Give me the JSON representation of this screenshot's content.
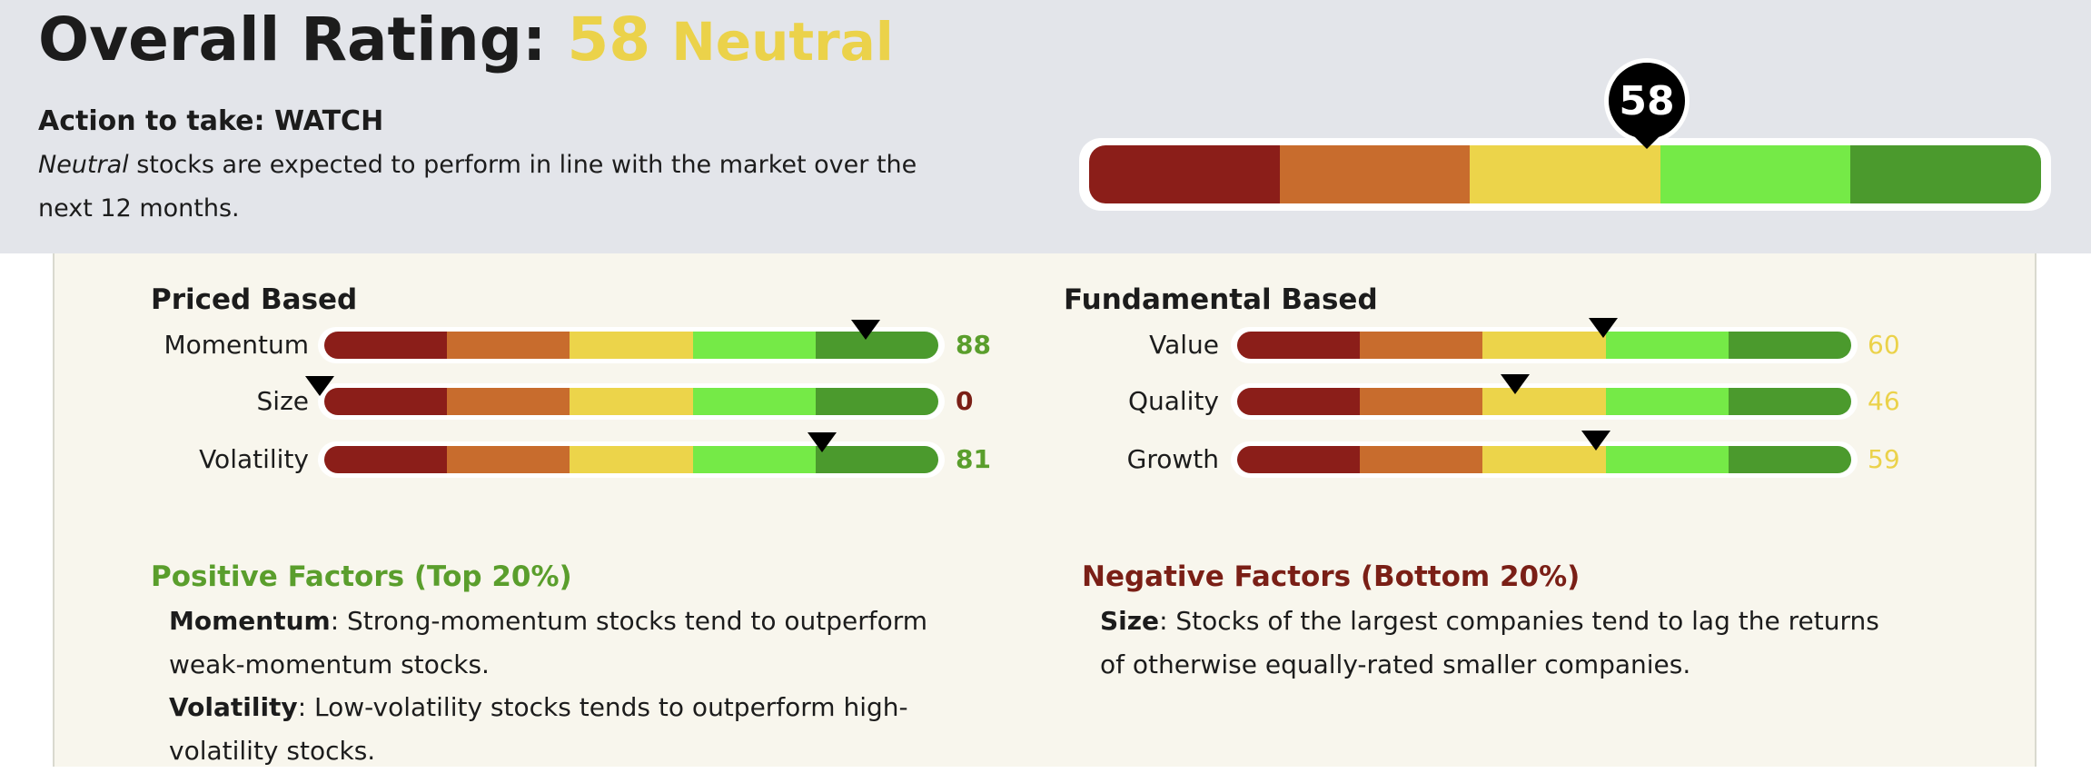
{
  "header": {
    "title_prefix": "Overall Rating:",
    "score": "58",
    "score_label": "Neutral",
    "action": "Action to take: WATCH",
    "desc_italic": "Neutral",
    "desc_rest": " stocks are expected to perform in line with the market over the next 12 months.",
    "gauge_value": 58,
    "gauge_label": "58"
  },
  "colors": {
    "scale": [
      "#8b1e19",
      "#c86c2d",
      "#ecd44a",
      "#75ea47",
      "#4b9a2d"
    ],
    "positive": "#5a9e2c",
    "negative": "#7a1f16",
    "neutral": "#ebd24a"
  },
  "priced": {
    "title": "Priced Based",
    "rows": [
      {
        "label": "Momentum",
        "value": "88",
        "score": 88
      },
      {
        "label": "Size",
        "value": "0",
        "score": 0
      },
      {
        "label": "Volatility",
        "value": "81",
        "score": 81
      }
    ]
  },
  "fundamental": {
    "title": "Fundamental Based",
    "rows": [
      {
        "label": "Value",
        "value": "60",
        "score": 60
      },
      {
        "label": "Quality",
        "value": "46",
        "score": 46
      },
      {
        "label": "Growth",
        "value": "59",
        "score": 59
      }
    ]
  },
  "positive": {
    "title": "Positive Factors (Top 20%)",
    "items": [
      {
        "name": "Momentum",
        "text": ": Strong-momentum stocks tend to outperform weak-momentum stocks."
      },
      {
        "name": "Volatility",
        "text": ": Low-volatility stocks tends to outperform high-volatility stocks."
      }
    ]
  },
  "negative": {
    "title": "Negative Factors (Bottom 20%)",
    "items": [
      {
        "name": "Size",
        "text": ": Stocks of the largest companies tend to lag the returns of otherwise equally-rated smaller companies."
      }
    ]
  }
}
